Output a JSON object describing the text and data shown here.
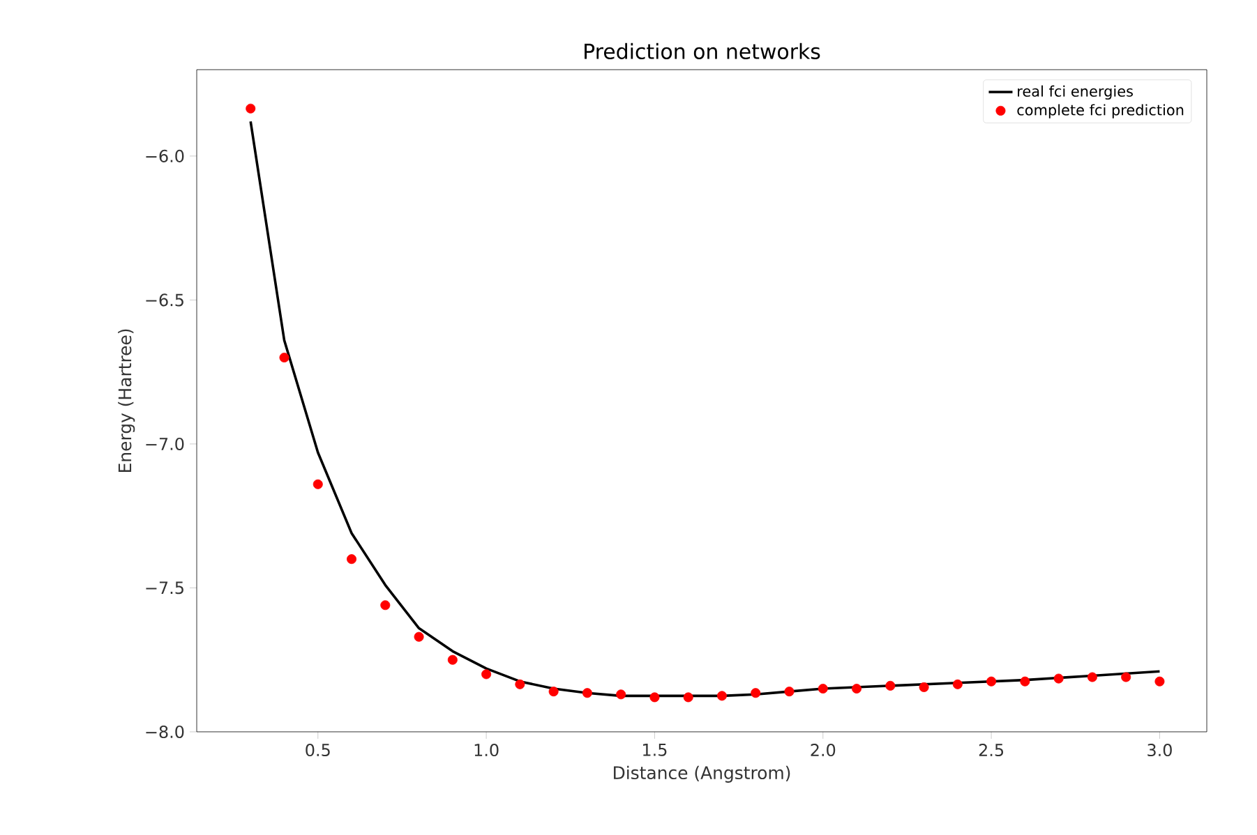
{
  "chart_data": {
    "type": "line",
    "title": "Prediction on networks",
    "xlabel": "Distance (Angstrom)",
    "ylabel": "Energy (Hartree)",
    "xlim": [
      0.14,
      3.14
    ],
    "ylim": [
      -8.0,
      -5.7
    ],
    "xticks": [
      {
        "value": 0.5,
        "label": "0.5"
      },
      {
        "value": 1.0,
        "label": "1.0"
      },
      {
        "value": 1.5,
        "label": "1.5"
      },
      {
        "value": 2.0,
        "label": "2.0"
      },
      {
        "value": 2.5,
        "label": "2.5"
      },
      {
        "value": 3.0,
        "label": "3.0"
      }
    ],
    "yticks": [
      {
        "value": -8.0,
        "label": "−8.0"
      },
      {
        "value": -7.5,
        "label": "−7.5"
      },
      {
        "value": -7.0,
        "label": "−7.0"
      },
      {
        "value": -6.5,
        "label": "−6.5"
      },
      {
        "value": -6.0,
        "label": "−6.0"
      }
    ],
    "legend": "top right",
    "grid": false,
    "series": [
      {
        "name": "real fci energies",
        "color": "#000000",
        "marker": "none",
        "line_style": "solid",
        "x": [
          0.3,
          0.4,
          0.5,
          0.6,
          0.7,
          0.8,
          0.9,
          1.0,
          1.1,
          1.2,
          1.3,
          1.4,
          1.5,
          1.6,
          1.7,
          1.8,
          1.9,
          2.0,
          2.2,
          2.4,
          2.6,
          2.8,
          3.0
        ],
        "values": [
          -5.88,
          -6.64,
          -7.03,
          -7.31,
          -7.49,
          -7.64,
          -7.72,
          -7.78,
          -7.825,
          -7.85,
          -7.865,
          -7.875,
          -7.875,
          -7.875,
          -7.875,
          -7.87,
          -7.86,
          -7.85,
          -7.84,
          -7.83,
          -7.82,
          -7.805,
          -7.79
        ]
      },
      {
        "name": "complete fci prediction",
        "type": "scatter",
        "color": "#ff0000",
        "marker": "circle",
        "x": [
          0.3,
          0.4,
          0.5,
          0.6,
          0.7,
          0.8,
          0.9,
          1.0,
          1.1,
          1.2,
          1.3,
          1.4,
          1.5,
          1.6,
          1.7,
          1.8,
          1.9,
          2.0,
          2.1,
          2.2,
          2.3,
          2.4,
          2.5,
          2.6,
          2.7,
          2.8,
          2.9,
          3.0
        ],
        "values": [
          -5.835,
          -6.7,
          -7.14,
          -7.4,
          -7.56,
          -7.67,
          -7.75,
          -7.8,
          -7.835,
          -7.86,
          -7.865,
          -7.87,
          -7.88,
          -7.88,
          -7.875,
          -7.865,
          -7.86,
          -7.85,
          -7.85,
          -7.84,
          -7.845,
          -7.835,
          -7.825,
          -7.825,
          -7.815,
          -7.81,
          -7.81,
          -7.825
        ]
      }
    ]
  }
}
